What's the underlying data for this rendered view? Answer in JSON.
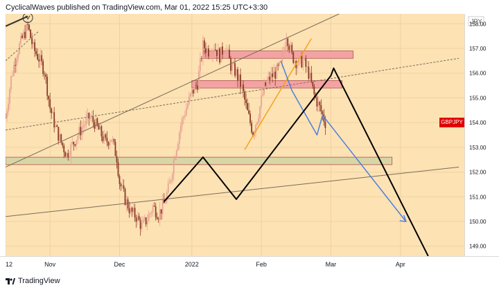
{
  "header": {
    "text": "CyclicalWaves published on TradingView.com, Mar 01, 2022 15:25 UTC+3:30"
  },
  "footer": {
    "brand": "TradingView"
  },
  "colors": {
    "background": "#fde2b4",
    "candle_up": "#e8a393",
    "candle_down": "#8a3a26",
    "zone_red": "#f3a3a3",
    "zone_green": "#d9d6a6",
    "path_black": "#000000",
    "path_blue": "#4a7fe0",
    "path_orange": "#f5a21b",
    "symbol_badge": "#e10000"
  },
  "chart_data": {
    "type": "candlestick",
    "title": "",
    "symbol_label": "GBPJPY",
    "currency_label": "JPY",
    "last_price": 154.0,
    "ylim": [
      148.6,
      158.4
    ],
    "xlim": [
      0,
      165
    ],
    "y_ticks": [
      "158.00",
      "157.00",
      "156.00",
      "155.00",
      "154.00",
      "153.00",
      "152.00",
      "151.00",
      "150.00",
      "149.00"
    ],
    "y_tick_values": [
      158,
      157,
      156,
      155,
      154,
      153,
      152,
      151,
      150,
      149
    ],
    "x_ticks": [
      {
        "label": "12",
        "x": 0
      },
      {
        "label": "Nov",
        "x": 16
      },
      {
        "label": "Dec",
        "x": 41
      },
      {
        "label": "2022",
        "x": 67
      },
      {
        "label": "Feb",
        "x": 92
      },
      {
        "label": "Mar",
        "x": 117
      },
      {
        "label": "Apr",
        "x": 142
      }
    ],
    "price_path": [
      [
        0,
        154.2
      ],
      [
        2,
        155.8
      ],
      [
        4,
        156.8
      ],
      [
        6,
        157.4
      ],
      [
        8,
        157.9
      ],
      [
        10,
        157.0
      ],
      [
        12,
        156.6
      ],
      [
        14,
        156.1
      ],
      [
        16,
        154.6
      ],
      [
        18,
        153.8
      ],
      [
        20,
        153.2
      ],
      [
        22,
        152.7
      ],
      [
        24,
        153.1
      ],
      [
        26,
        153.5
      ],
      [
        28,
        153.9
      ],
      [
        30,
        154.2
      ],
      [
        32,
        154.0
      ],
      [
        34,
        153.6
      ],
      [
        36,
        153.2
      ],
      [
        38,
        153.4
      ],
      [
        40,
        152.6
      ],
      [
        41,
        151.6
      ],
      [
        43,
        150.9
      ],
      [
        45,
        150.4
      ],
      [
        47,
        150.2
      ],
      [
        49,
        149.8
      ],
      [
        51,
        150.1
      ],
      [
        53,
        150.6
      ],
      [
        55,
        150.3
      ],
      [
        57,
        150.7
      ],
      [
        59,
        151.5
      ],
      [
        61,
        152.8
      ],
      [
        63,
        153.9
      ],
      [
        65,
        154.6
      ],
      [
        67,
        155.2
      ],
      [
        69,
        155.6
      ],
      [
        71,
        157.1
      ],
      [
        73,
        156.9
      ],
      [
        75,
        157.1
      ],
      [
        77,
        156.7
      ],
      [
        79,
        157.1
      ],
      [
        81,
        156.3
      ],
      [
        83,
        156.0
      ],
      [
        85,
        155.4
      ],
      [
        87,
        154.4
      ],
      [
        89,
        153.6
      ],
      [
        91,
        154.4
      ],
      [
        93,
        155.4
      ],
      [
        95,
        155.8
      ],
      [
        97,
        156.0
      ],
      [
        99,
        156.3
      ],
      [
        101,
        157.6
      ],
      [
        103,
        156.7
      ],
      [
        105,
        156.4
      ],
      [
        107,
        156.5
      ],
      [
        109,
        156.0
      ],
      [
        111,
        155.1
      ],
      [
        113,
        154.6
      ],
      [
        115,
        154.0
      ]
    ],
    "zones": [
      {
        "name": "upper-resistance",
        "x0": 71,
        "x1": 125,
        "y0": 156.6,
        "y1": 156.9,
        "color": "zone_red"
      },
      {
        "name": "mid-resistance",
        "x0": 67,
        "x1": 121,
        "y0": 155.4,
        "y1": 155.7,
        "color": "zone_red"
      },
      {
        "name": "support",
        "x0": 0,
        "x1": 139,
        "y0": 152.3,
        "y1": 152.6,
        "color": "zone_green"
      }
    ],
    "lines": [
      {
        "name": "trend-top-left",
        "points": [
          [
            0,
            157.9
          ],
          [
            8,
            158.3
          ]
        ],
        "color": "#333333",
        "width": 2,
        "dash": ""
      },
      {
        "name": "upper-channel",
        "points": [
          [
            0,
            152.2
          ],
          [
            120,
            158.4
          ]
        ],
        "color": "#7a6a58",
        "width": 1,
        "dash": ""
      },
      {
        "name": "mid-channel",
        "points": [
          [
            0,
            153.7
          ],
          [
            163,
            156.6
          ]
        ],
        "color": "#7a6a58",
        "width": 1,
        "dash": "3 2"
      },
      {
        "name": "lower-channel",
        "points": [
          [
            0,
            150.2
          ],
          [
            163,
            152.2
          ]
        ],
        "color": "#7a6a58",
        "width": 1,
        "dash": ""
      },
      {
        "name": "top-left-dashed",
        "points": [
          [
            0,
            156.5
          ],
          [
            12,
            157.7
          ]
        ],
        "color": "#7a6a58",
        "width": 1,
        "dash": "3 2"
      },
      {
        "name": "orange-rise",
        "points": [
          [
            86,
            152.9
          ],
          [
            110,
            157.4
          ]
        ],
        "color": "path_orange",
        "width": 1.5,
        "dash": ""
      },
      {
        "name": "blue-projection",
        "points": [
          [
            99,
            156.5
          ],
          [
            103,
            155.3
          ],
          [
            112,
            153.5
          ],
          [
            114,
            154.3
          ],
          [
            144,
            150.0
          ]
        ],
        "color": "path_blue",
        "width": 1.5,
        "dash": ""
      },
      {
        "name": "black-projection",
        "points": [
          [
            57,
            150.8
          ],
          [
            71,
            152.6
          ],
          [
            83,
            150.9
          ],
          [
            117,
            155.9
          ],
          [
            118,
            156.2
          ],
          [
            152,
            148.6
          ]
        ],
        "color": "path_black",
        "width": 2,
        "dash": ""
      }
    ],
    "arrows": [
      {
        "name": "blue-arrow-head",
        "at": [
          144,
          150.0
        ],
        "color": "path_blue"
      }
    ],
    "markers": [
      {
        "name": "circle-marker",
        "at": [
          8,
          158.3
        ]
      }
    ]
  }
}
